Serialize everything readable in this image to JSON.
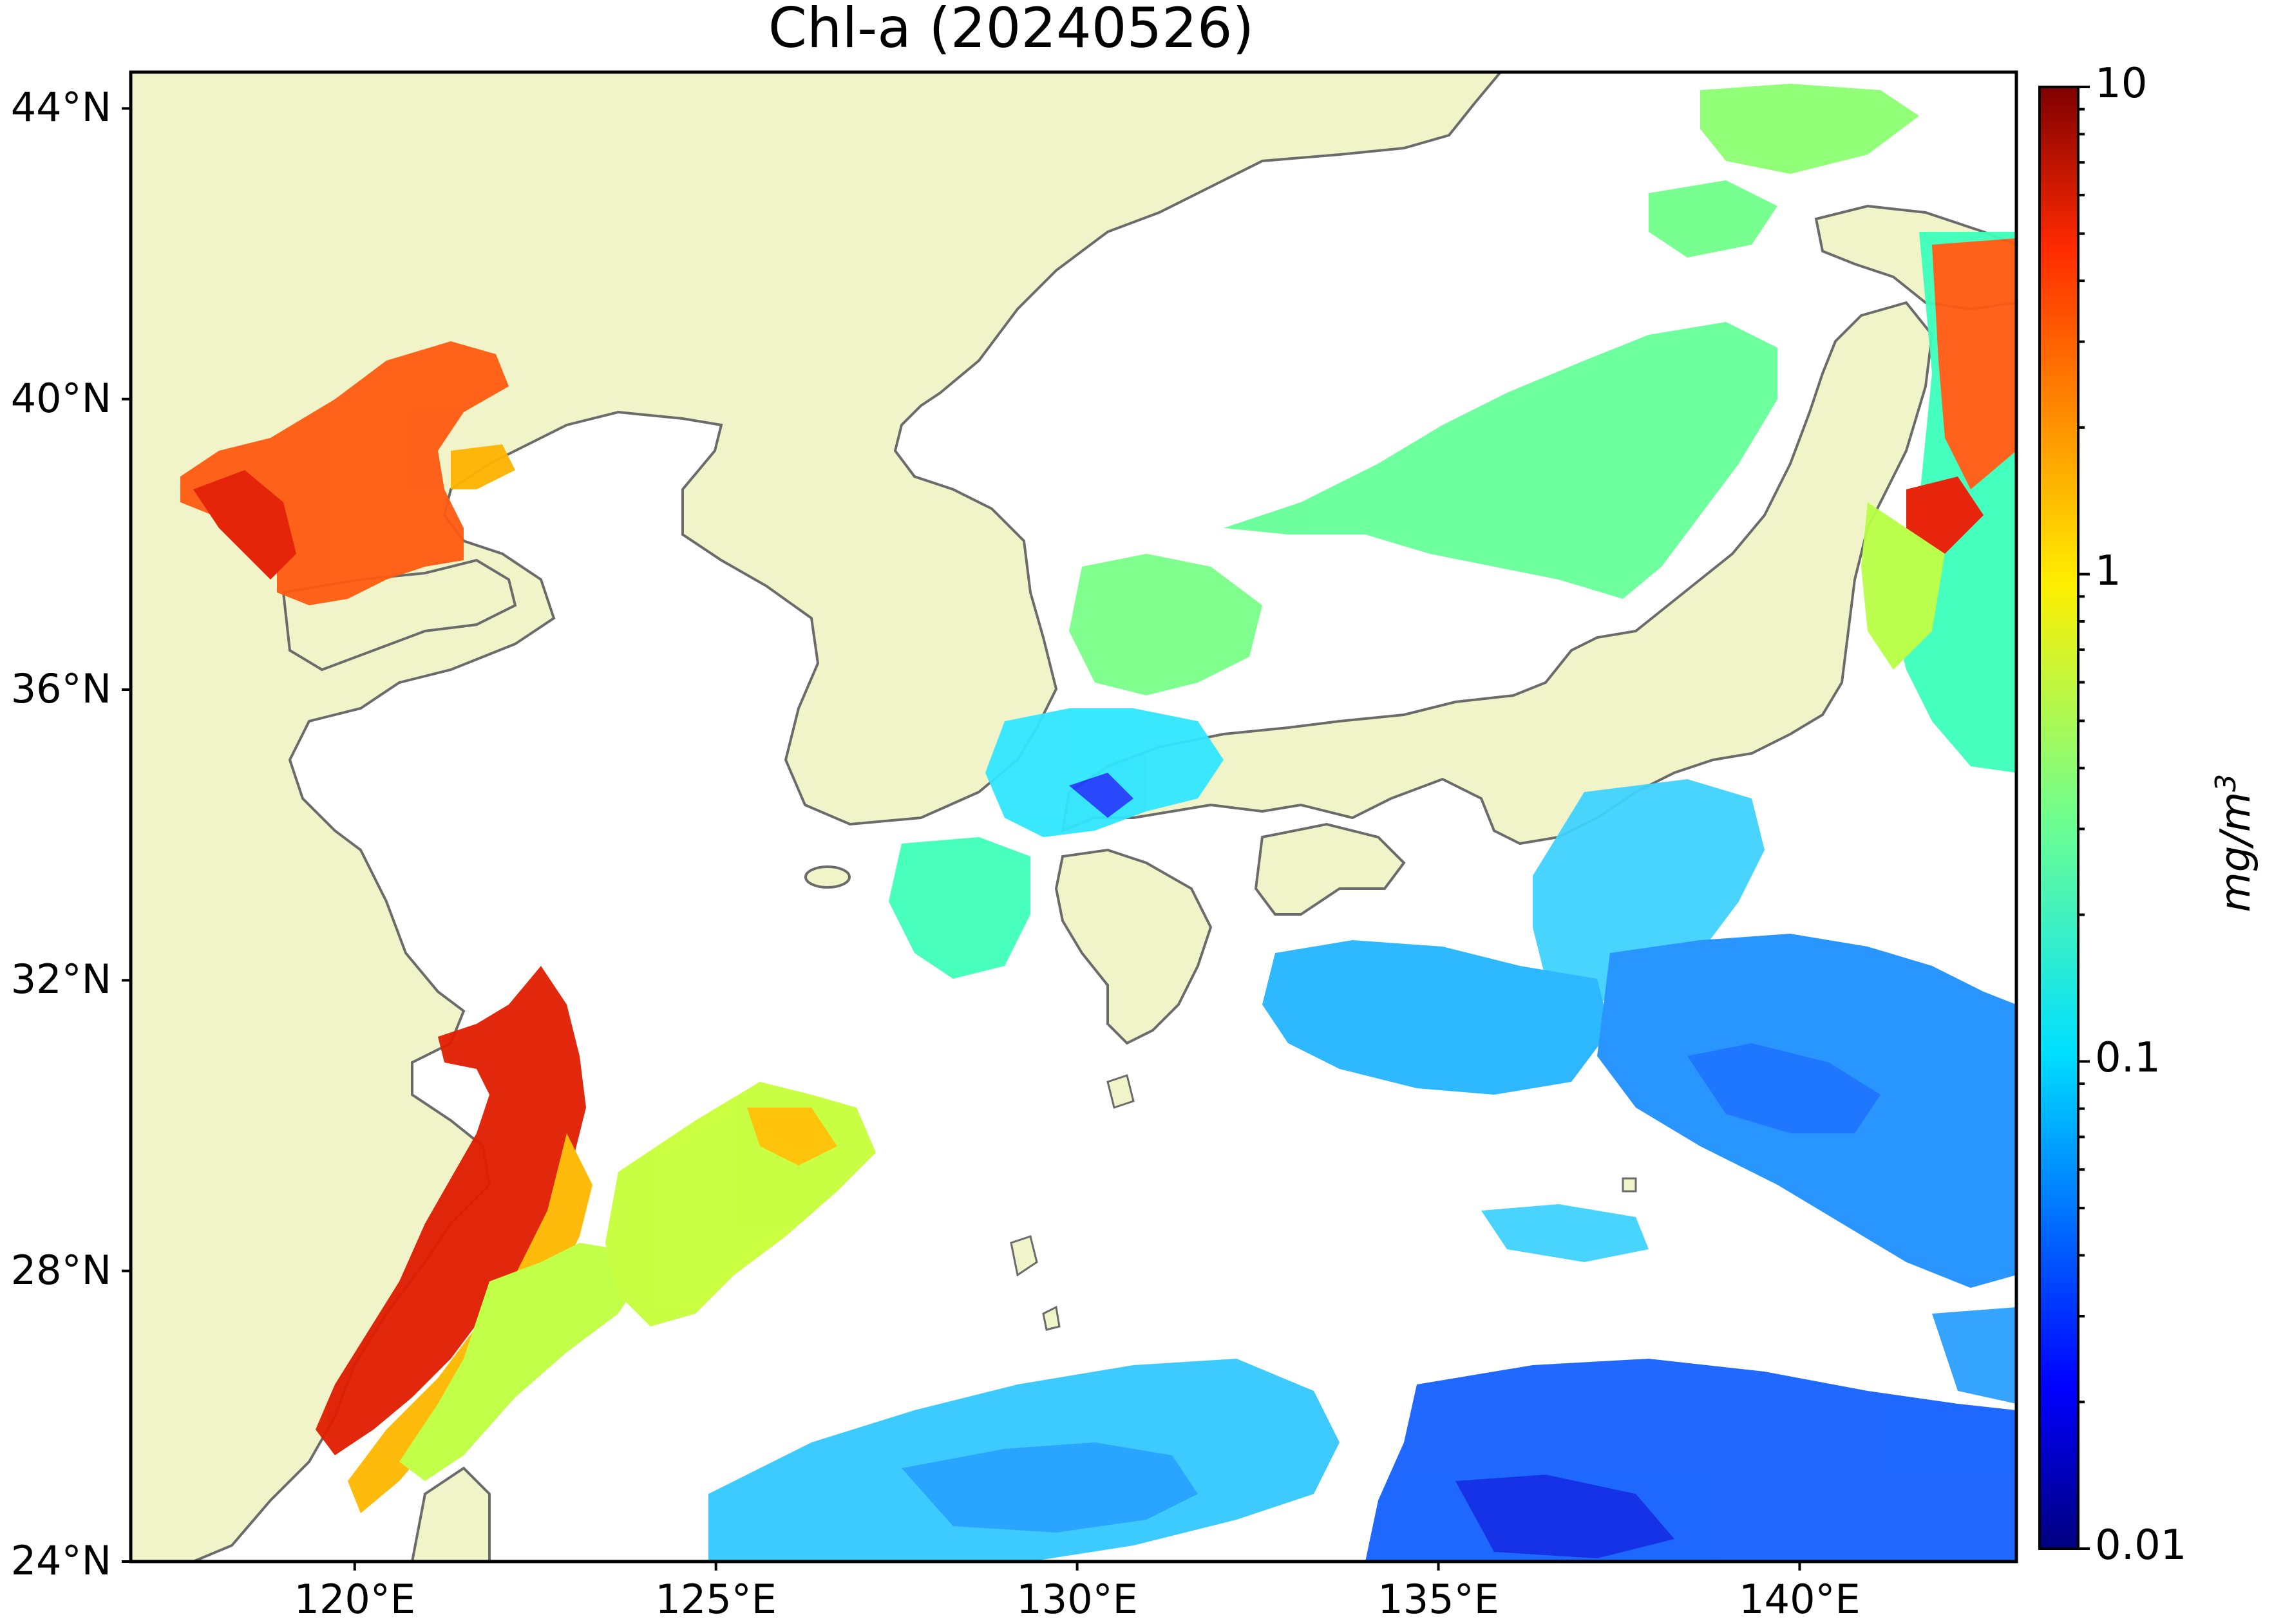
{
  "title": "Chl-a (20240526)",
  "map": {
    "lon_range": [
      116.9,
      143.0
    ],
    "lat_range": [
      24.0,
      44.5
    ],
    "lat_ticks": [
      {
        "value": 44,
        "label": "44°N"
      },
      {
        "value": 40,
        "label": "40°N"
      },
      {
        "value": 36,
        "label": "36°N"
      },
      {
        "value": 32,
        "label": "32°N"
      },
      {
        "value": 28,
        "label": "28°N"
      },
      {
        "value": 24,
        "label": "24°N"
      }
    ],
    "lon_ticks": [
      {
        "value": 120,
        "label": "120°E"
      },
      {
        "value": 125,
        "label": "125°E"
      },
      {
        "value": 130,
        "label": "130°E"
      },
      {
        "value": 135,
        "label": "135°E"
      },
      {
        "value": 140,
        "label": "140°E"
      }
    ],
    "colors": {
      "land": "#f0f4c8",
      "coastline": "#6b6b6b",
      "no_data": "#ffffff"
    }
  },
  "colorbar": {
    "colormap": "jet",
    "scale": "log",
    "range": [
      0.01,
      10
    ],
    "ticks": [
      {
        "value": 10,
        "label": "10"
      },
      {
        "value": 1,
        "label": "1"
      },
      {
        "value": 0.1,
        "label": "0.1"
      },
      {
        "value": 0.01,
        "label": "0.01"
      }
    ],
    "unit_base": "mg/m",
    "unit_sup": "3"
  }
}
